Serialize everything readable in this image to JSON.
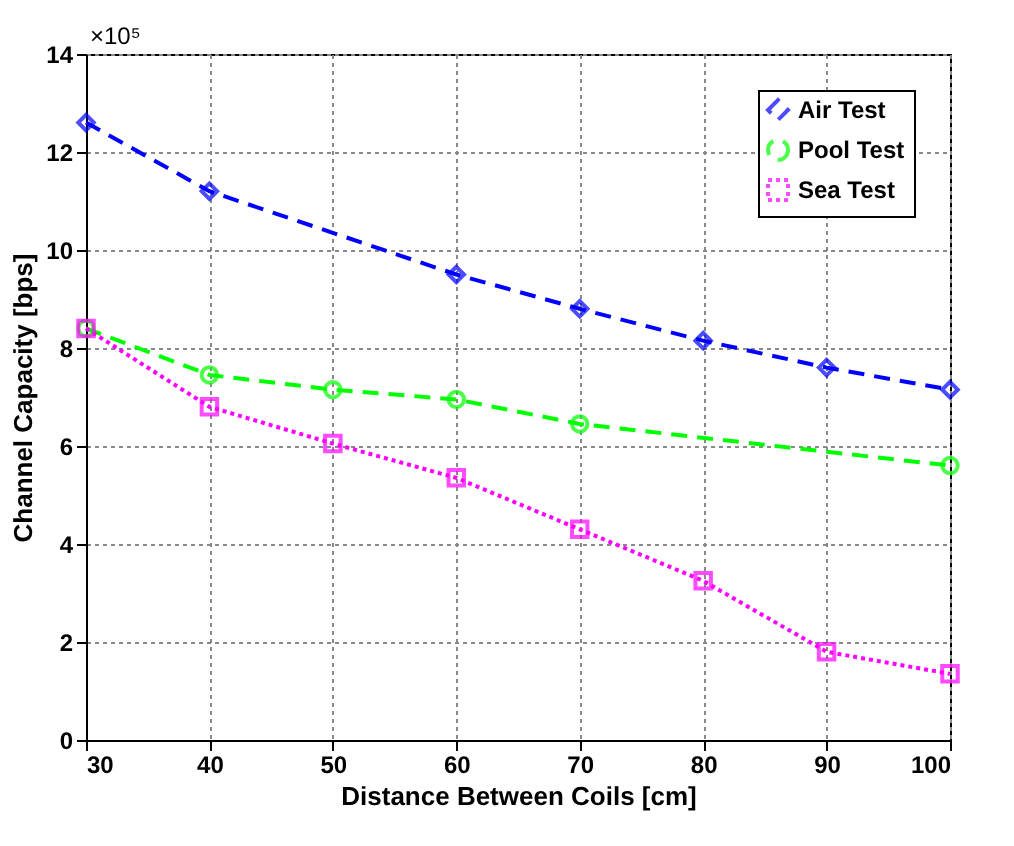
{
  "chart_data": {
    "type": "line",
    "xlabel": "Distance Between Coils [cm]",
    "ylabel": "Channel Capacity [bps]",
    "annotations": [
      "×10⁵"
    ],
    "xlim": [
      30,
      100
    ],
    "xticks": [
      30,
      40,
      50,
      60,
      70,
      80,
      90,
      100
    ],
    "ylim": [
      0,
      14
    ],
    "yticks": [
      0,
      2,
      4,
      6,
      8,
      10,
      12,
      14
    ],
    "grid": true,
    "legend": "top right",
    "series": [
      {
        "name": "Air Test",
        "color": "#0000ff",
        "marker": "diamond",
        "line_style": "dashed",
        "x": [
          30,
          40,
          60,
          70,
          80,
          90,
          100
        ],
        "values": [
          12.6,
          11.2,
          9.5,
          8.8,
          8.15,
          7.6,
          7.15
        ]
      },
      {
        "name": "Pool Test",
        "color": "#00ff00",
        "marker": "circle",
        "line_style": "dashed",
        "x": [
          30,
          40,
          50,
          60,
          70,
          100
        ],
        "values": [
          8.4,
          7.45,
          7.15,
          6.95,
          6.45,
          5.6
        ]
      },
      {
        "name": "Sea Test",
        "color": "#ff00ff",
        "marker": "square",
        "line_style": "dotted",
        "x": [
          30,
          40,
          50,
          60,
          70,
          80,
          90,
          100
        ],
        "values": [
          8.4,
          6.8,
          6.05,
          5.35,
          4.3,
          3.25,
          1.8,
          1.35
        ]
      }
    ]
  }
}
